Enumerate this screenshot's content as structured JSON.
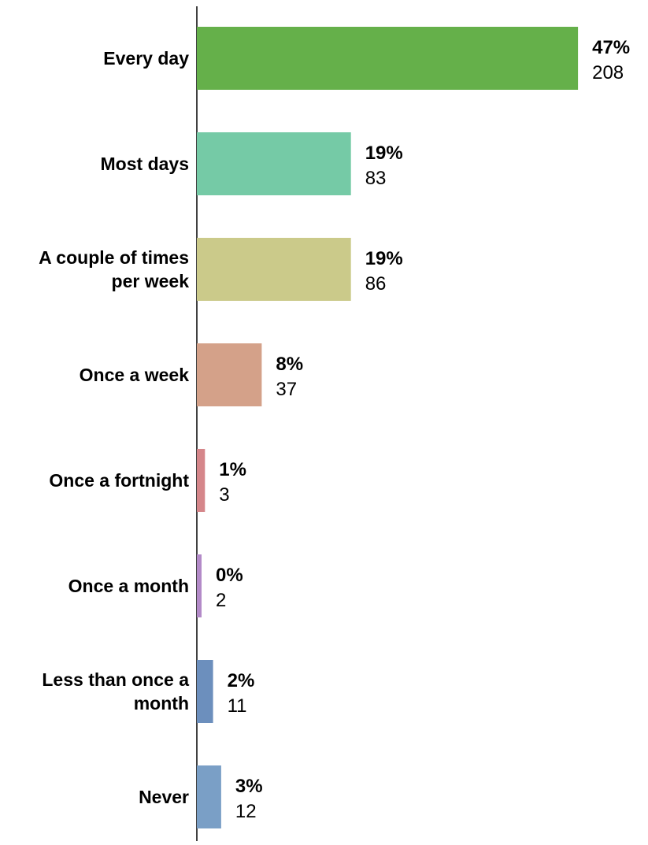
{
  "chart_data": {
    "type": "bar",
    "orientation": "horizontal",
    "categories": [
      [
        "Every day"
      ],
      [
        "Most days"
      ],
      [
        "A couple of times",
        "per week"
      ],
      [
        "Once a week"
      ],
      [
        "Once a fortnight"
      ],
      [
        "Once a month"
      ],
      [
        "Less than once a",
        "month"
      ],
      [
        "Never"
      ]
    ],
    "values": [
      47,
      19,
      19,
      8,
      1,
      0,
      2,
      3
    ],
    "percent_labels": [
      "47%",
      "19%",
      "19%",
      "8%",
      "1%",
      "0%",
      "2%",
      "3%"
    ],
    "counts": [
      208,
      83,
      86,
      37,
      3,
      2,
      11,
      12
    ],
    "colors": [
      "#65b04a",
      "#75caa6",
      "#cbca8a",
      "#d4a189",
      "#d5868a",
      "#b38ac8",
      "#6c8fbd",
      "#7a9fc6"
    ],
    "grid": false,
    "legend": "none",
    "xlabel": "",
    "ylabel": ""
  }
}
